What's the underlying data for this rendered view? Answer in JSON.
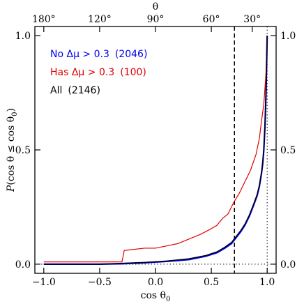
{
  "chart_data": {
    "type": "line",
    "xlabel": "cos θ",
    "xlabel_sub": "0",
    "ylabel_prefix": "P",
    "ylabel_body": "(cos θ ≤ cos θ",
    "ylabel_sub": "0",
    "ylabel_suffix": ")",
    "top_axis_label": "θ",
    "xlim": [
      -1.08,
      1.08
    ],
    "ylim": [
      -0.04,
      1.04
    ],
    "x_ticks": [
      {
        "value": -1.0,
        "label": "−1.0"
      },
      {
        "value": -0.5,
        "label": "−0.5"
      },
      {
        "value": 0.0,
        "label": "0.0"
      },
      {
        "value": 0.5,
        "label": "0.5"
      },
      {
        "value": 1.0,
        "label": "1.0"
      }
    ],
    "y_ticks": [
      {
        "value": 0.0,
        "label": "0.0"
      },
      {
        "value": 0.5,
        "label": "0.5"
      },
      {
        "value": 1.0,
        "label": "1.0"
      }
    ],
    "top_ticks": [
      {
        "value": -1.0,
        "label": "180°"
      },
      {
        "value": -0.5,
        "label": "120°"
      },
      {
        "value": 0.0,
        "label": "90°"
      },
      {
        "value": 0.5,
        "label": "60°"
      },
      {
        "value": 0.866,
        "label": "30°"
      }
    ],
    "legend_placement": "top-left",
    "reference_lines": {
      "vertical_dashed_x": 0.707,
      "vertical_dotted_x": 1.0,
      "horizontal_dotted_y": 0.0
    },
    "series": [
      {
        "name": "No Δμ > 0.3",
        "count": "(2046)",
        "color": "#0000ee",
        "x": [
          -1.0,
          -0.5,
          -0.3,
          -0.1,
          0.1,
          0.3,
          0.45,
          0.55,
          0.62,
          0.68,
          0.72,
          0.76,
          0.8,
          0.84,
          0.88,
          0.91,
          0.93,
          0.95,
          0.96,
          0.97,
          0.98,
          0.99,
          1.0
        ],
        "y": [
          0.0,
          0.0,
          0.002,
          0.006,
          0.012,
          0.02,
          0.035,
          0.05,
          0.07,
          0.09,
          0.115,
          0.14,
          0.17,
          0.21,
          0.26,
          0.3,
          0.34,
          0.4,
          0.44,
          0.5,
          0.6,
          0.75,
          1.0
        ]
      },
      {
        "name": "Has Δμ > 0.3",
        "count": "(100)",
        "color": "#e00000",
        "x": [
          -1.0,
          -0.3,
          -0.28,
          -0.1,
          0.0,
          0.1,
          0.2,
          0.3,
          0.4,
          0.48,
          0.55,
          0.6,
          0.65,
          0.7,
          0.75,
          0.8,
          0.85,
          0.9,
          0.93,
          0.95,
          0.97,
          0.98,
          0.99,
          1.0
        ],
        "y": [
          0.01,
          0.01,
          0.06,
          0.07,
          0.07,
          0.08,
          0.09,
          0.11,
          0.13,
          0.15,
          0.17,
          0.2,
          0.22,
          0.27,
          0.31,
          0.36,
          0.41,
          0.48,
          0.55,
          0.63,
          0.7,
          0.77,
          0.84,
          1.0
        ]
      },
      {
        "name": "All",
        "count": "(2146)",
        "color": "#000000",
        "x": [
          -1.0,
          -0.5,
          -0.3,
          -0.1,
          0.1,
          0.3,
          0.45,
          0.55,
          0.62,
          0.68,
          0.72,
          0.76,
          0.8,
          0.84,
          0.88,
          0.91,
          0.93,
          0.95,
          0.96,
          0.97,
          0.98,
          0.99,
          1.0
        ],
        "y": [
          0.0,
          0.0,
          0.004,
          0.008,
          0.014,
          0.024,
          0.038,
          0.054,
          0.074,
          0.095,
          0.12,
          0.145,
          0.175,
          0.215,
          0.265,
          0.305,
          0.345,
          0.405,
          0.445,
          0.505,
          0.605,
          0.755,
          1.0
        ]
      }
    ]
  }
}
